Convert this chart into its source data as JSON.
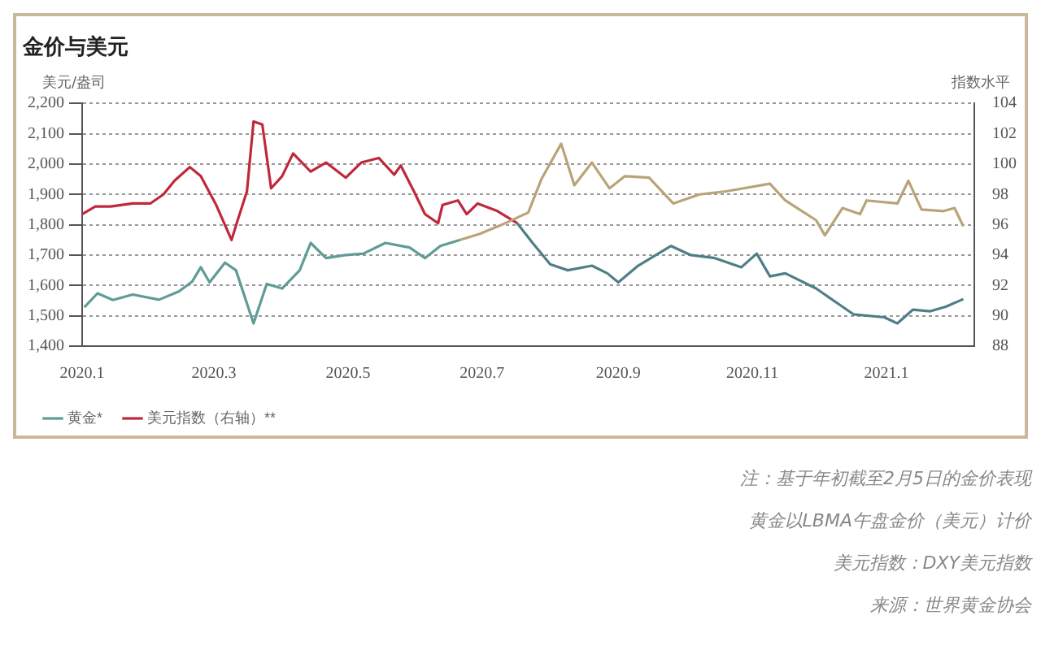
{
  "chart_data": {
    "type": "line",
    "title": "金价与美元",
    "ylabel": "美元/盎司",
    "y2label": "指数水平",
    "xlim": [
      "2020-01-01",
      "2021-02-10"
    ],
    "xticks": [
      {
        "value": "2020-01",
        "label": "2020.1"
      },
      {
        "value": "2020-03",
        "label": "2020.3"
      },
      {
        "value": "2020-05",
        "label": "2020.5"
      },
      {
        "value": "2020-07",
        "label": "2020.7"
      },
      {
        "value": "2020-09",
        "label": "2020.9"
      },
      {
        "value": "2020-11",
        "label": "2020.11"
      },
      {
        "value": "2021-01",
        "label": "2021.1"
      }
    ],
    "ylim": [
      1400,
      2200
    ],
    "yticks": [
      {
        "value": 1400,
        "label": "1,400"
      },
      {
        "value": 1500,
        "label": "1,500"
      },
      {
        "value": 1600,
        "label": "1,600"
      },
      {
        "value": 1700,
        "label": "1,700"
      },
      {
        "value": 1800,
        "label": "1,800"
      },
      {
        "value": 1900,
        "label": "1,900"
      },
      {
        "value": 2000,
        "label": "2,000"
      },
      {
        "value": 2100,
        "label": "2,100"
      },
      {
        "value": 2200,
        "label": "2,200"
      }
    ],
    "y2lim": [
      88,
      104
    ],
    "y2ticks": [
      88,
      90,
      92,
      94,
      96,
      98,
      100,
      102,
      104
    ],
    "grid": "y",
    "legend": "bottom left",
    "marker": "none",
    "line_style": "solid",
    "series": [
      {
        "name": "黄金*",
        "color": "#5f9c96",
        "x": [
          "2020-01-02",
          "2020-01-08",
          "2020-01-15",
          "2020-01-24",
          "2020-02-05",
          "2020-02-14",
          "2020-02-20",
          "2020-02-24",
          "2020-02-28",
          "2020-03-06",
          "2020-03-11",
          "2020-03-19",
          "2020-03-25",
          "2020-04-01",
          "2020-04-09",
          "2020-04-14",
          "2020-04-21",
          "2020-04-30",
          "2020-05-08",
          "2020-05-18",
          "2020-05-29",
          "2020-06-05",
          "2020-06-12",
          "2020-06-21"
        ],
        "values": [
          1528,
          1574,
          1552,
          1570,
          1553,
          1580,
          1612,
          1660,
          1610,
          1675,
          1650,
          1475,
          1605,
          1590,
          1650,
          1740,
          1690,
          1700,
          1705,
          1740,
          1725,
          1690,
          1730,
          1750
        ]
      },
      {
        "color": "#b9a47a",
        "x": [
          "2020-06-21",
          "2020-06-30",
          "2020-07-10",
          "2020-07-22",
          "2020-07-28",
          "2020-08-06",
          "2020-08-12",
          "2020-08-20",
          "2020-08-28",
          "2020-09-04",
          "2020-09-15",
          "2020-09-26",
          "2020-10-08",
          "2020-10-20",
          "2020-11-09",
          "2020-11-16",
          "2020-11-30",
          "2020-12-04",
          "2020-12-12",
          "2020-12-20",
          "2020-12-23",
          "2021-01-06",
          "2021-01-11",
          "2021-01-17",
          "2021-01-27",
          "2021-02-01",
          "2021-02-05"
        ],
        "values": [
          1750,
          1770,
          1800,
          1840,
          1950,
          2067,
          1930,
          2005,
          1920,
          1960,
          1955,
          1870,
          1900,
          1910,
          1935,
          1880,
          1815,
          1765,
          1855,
          1835,
          1880,
          1870,
          1945,
          1850,
          1845,
          1855,
          1795
        ]
      },
      {
        "name": "美元指数（右轴）**",
        "color": "#c0283c",
        "axis": "y2",
        "x": [
          "2020-01-01",
          "2020-01-07",
          "2020-01-14",
          "2020-01-24",
          "2020-02-01",
          "2020-02-07",
          "2020-02-12",
          "2020-02-19",
          "2020-02-24",
          "2020-03-02",
          "2020-03-09",
          "2020-03-12",
          "2020-03-16",
          "2020-03-19",
          "2020-03-23",
          "2020-03-27",
          "2020-04-01",
          "2020-04-06",
          "2020-04-14",
          "2020-04-21",
          "2020-04-30",
          "2020-05-07",
          "2020-05-15",
          "2020-05-22",
          "2020-05-25",
          "2020-05-31",
          "2020-06-05",
          "2020-06-11",
          "2020-06-13",
          "2020-06-20",
          "2020-06-24",
          "2020-06-29",
          "2020-07-08",
          "2020-07-17"
        ],
        "values": [
          96.7,
          97.2,
          97.2,
          97.4,
          97.4,
          98.0,
          98.9,
          99.8,
          99.2,
          97.3,
          95.0,
          96.4,
          98.2,
          102.8,
          102.6,
          98.4,
          99.2,
          100.7,
          99.5,
          100.1,
          99.1,
          100.1,
          100.4,
          99.3,
          99.9,
          98.2,
          96.7,
          96.1,
          97.3,
          97.6,
          96.7,
          97.4,
          96.9,
          96.1
        ]
      },
      {
        "color": "#4f7f86",
        "axis": "y2",
        "x": [
          "2020-07-17",
          "2020-07-24",
          "2020-08-01",
          "2020-08-09",
          "2020-08-20",
          "2020-08-27",
          "2020-09-01",
          "2020-09-10",
          "2020-09-25",
          "2020-10-04",
          "2020-10-15",
          "2020-10-27",
          "2020-11-03",
          "2020-11-09",
          "2020-11-16",
          "2020-11-30",
          "2020-12-10",
          "2020-12-17",
          "2020-12-31",
          "2021-01-06",
          "2021-01-13",
          "2021-01-21",
          "2021-01-28",
          "2021-02-05"
        ],
        "values": [
          96.1,
          94.8,
          93.4,
          93.0,
          93.3,
          92.8,
          92.2,
          93.3,
          94.6,
          94.0,
          93.8,
          93.2,
          94.1,
          92.6,
          92.8,
          91.8,
          90.8,
          90.1,
          89.9,
          89.5,
          90.4,
          90.3,
          90.6,
          91.1
        ]
      }
    ],
    "annotations": [
      "注：基于年初截至2月5日的金价表现",
      "黄金以LBMA午盘金价（美元）计价",
      "美元指数：DXY美元指数",
      "来源：世界黄金协会"
    ]
  }
}
